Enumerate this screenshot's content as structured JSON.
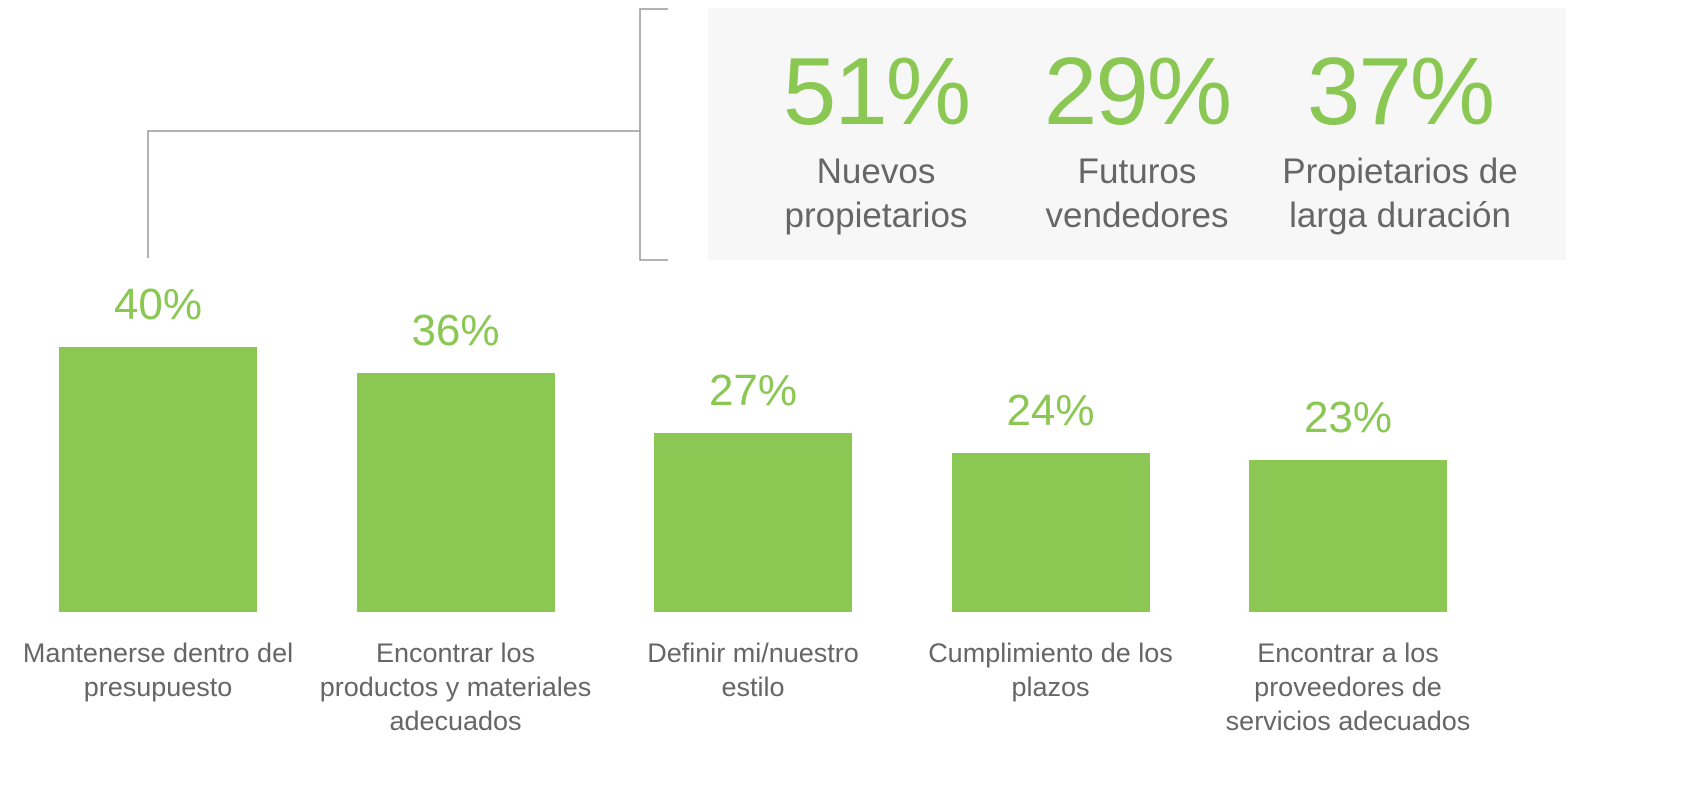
{
  "chart_data": {
    "type": "bar",
    "categories": [
      "Mantenerse dentro del\npresupuesto",
      "Encontrar los\nproductos y materiales\nadecuados",
      "Definir mi/nuestro\nestilo",
      "Cumplimiento de los\nplazos",
      "Encontrar a los\nproveedores de\nservicios adecuados"
    ],
    "values": [
      40,
      36,
      27,
      24,
      23
    ],
    "value_labels": [
      "40%",
      "36%",
      "27%",
      "24%",
      "23%"
    ],
    "color": "#8bc853",
    "callout": {
      "values": [
        51,
        29,
        37
      ],
      "value_labels": [
        "51%",
        "29%",
        "37%"
      ],
      "captions": [
        "Nuevos\npropietarios",
        "Futuros\nvendedores",
        "Propietarios de\nlarga duración"
      ]
    }
  }
}
